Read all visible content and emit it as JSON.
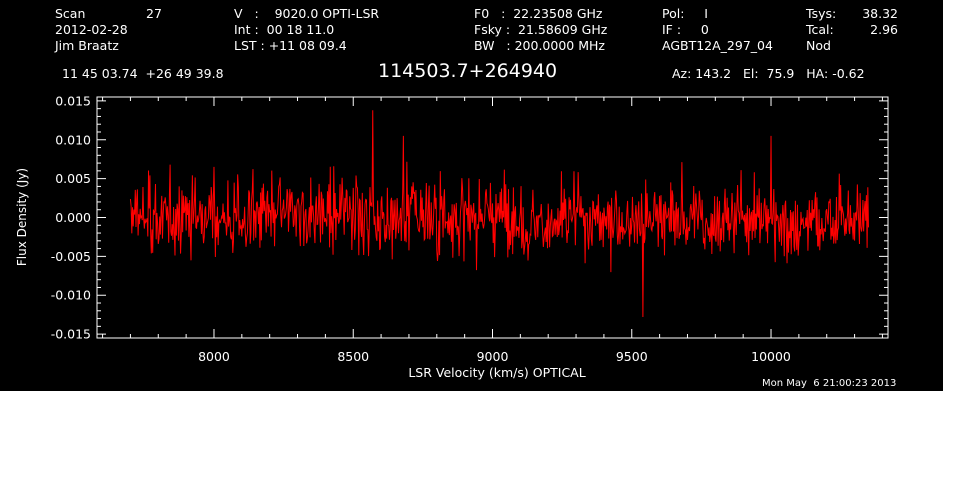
{
  "header": {
    "col1": {
      "scan_label": "Scan",
      "scan_value": "27",
      "date": "2012-02-28",
      "observer": "Jim Braatz"
    },
    "col2": {
      "v_line": "V   :    9020.0 OPTI-LSR",
      "int_line": "Int :  00 18 11.0",
      "lst_line": "LST : +11 08 09.4"
    },
    "col3": {
      "f0_line": "F0   :  22.23508 GHz",
      "fsky_line": "Fsky :  21.58609 GHz",
      "bw_line": "BW   : 200.0000 MHz"
    },
    "col4": {
      "pol_line": "Pol:     I",
      "if_line": "IF :     0",
      "project": "AGBT12A_297_04"
    },
    "col5": {
      "tsys_label": "Tsys:",
      "tsys_value": "38.32",
      "tcal_label": "Tcal:",
      "tcal_value": "2.96",
      "mode": "Nod"
    },
    "coords": "11 45 03.74  +26 49 39.8",
    "source": "114503.7+264940",
    "az_el_ha": "Az: 143.2   El:  75.9   HA: -0.62"
  },
  "timestamp": "Mon May  6 21:00:23 2013",
  "colors": {
    "background": "#000000",
    "axes": "#ffffff",
    "spectrum": "#ff0000"
  },
  "chart_data": {
    "type": "line",
    "title": "114503.7+264940",
    "xlabel": "LSR Velocity (km/s) OPTICAL",
    "ylabel": "Flux Density (Jy)",
    "xlim": [
      7580,
      10420
    ],
    "ylim": [
      -0.0155,
      0.0155
    ],
    "x_range_of_data": [
      7700,
      10350
    ],
    "x_ticks": [
      8000,
      8500,
      9000,
      9500,
      10000
    ],
    "x_tick_labels": [
      "8000",
      "8500",
      "9000",
      "9500",
      "10000"
    ],
    "y_ticks": [
      0.015,
      0.01,
      0.005,
      0.0,
      -0.005,
      -0.01,
      -0.015
    ],
    "y_tick_labels": [
      "0.015",
      "0.010",
      "0.005",
      "0.000",
      "-0.005",
      "-0.010",
      "-0.015"
    ],
    "grid": false,
    "series": [
      {
        "description_of_values": "noise-like spectrum around 0 Jy, typical amplitude about ±0.006 Jy",
        "x_start": 7700,
        "x_step": 2.5,
        "points": 1061,
        "mean": 0.0,
        "rms": 0.0033,
        "peaks": [
          {
            "x": 8570,
            "y": 0.0138
          },
          {
            "x": 9540,
            "y": -0.0128
          },
          {
            "x": 8680,
            "y": 0.0105
          },
          {
            "x": 10000,
            "y": 0.0105
          }
        ]
      }
    ]
  }
}
